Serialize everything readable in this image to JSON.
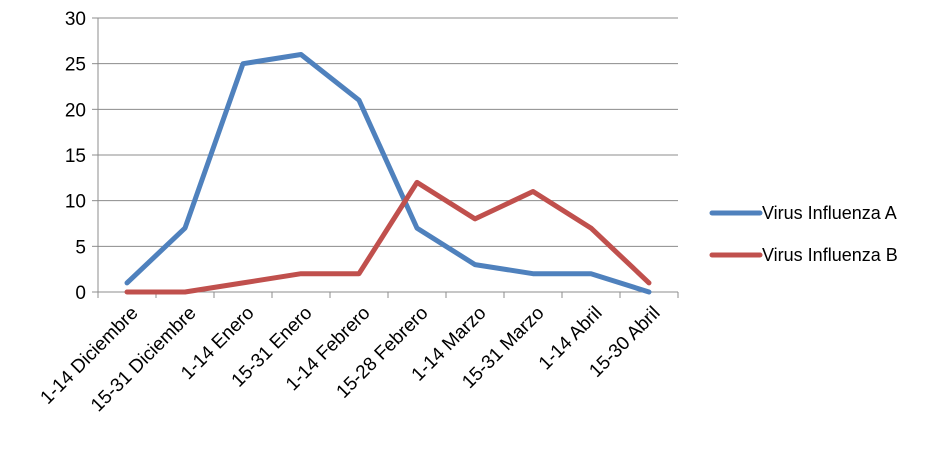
{
  "chart_data": {
    "type": "line",
    "title": "",
    "xlabel": "",
    "ylabel": "",
    "categories": [
      "1-14 Diciembre",
      "15-31 Diciembre",
      "1-14 Enero",
      "15-31 Enero",
      "1-14 Febrero",
      "15-28 Febrero",
      "1-14 Marzo",
      "15-31 Marzo",
      "1-14 Abril",
      "15-30 Abril"
    ],
    "ylim": [
      0,
      30
    ],
    "yticks": [
      "0",
      "5",
      "10",
      "15",
      "20",
      "25",
      "30"
    ],
    "grid": true,
    "legend_position": "right",
    "series": [
      {
        "name": "Virus Influenza A",
        "color": "#4F81BD",
        "values": [
          1,
          7,
          25,
          26,
          21,
          7,
          3,
          2,
          2,
          0
        ]
      },
      {
        "name": "Virus Influenza B",
        "color": "#C0504D",
        "values": [
          0,
          0,
          1,
          2,
          2,
          12,
          8,
          11,
          7,
          1
        ]
      }
    ]
  }
}
